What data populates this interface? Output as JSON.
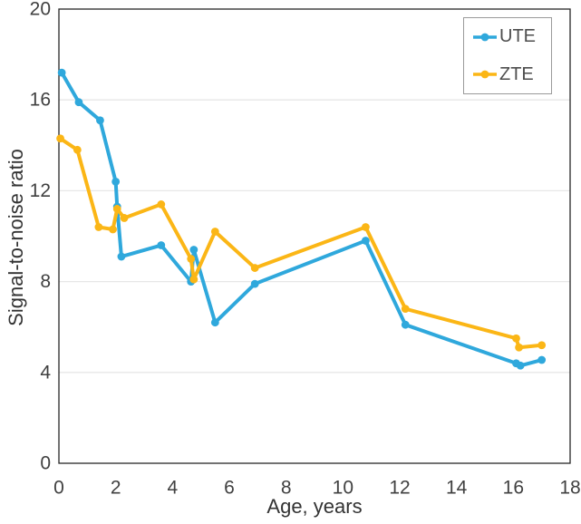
{
  "chart_data": {
    "type": "line",
    "title": "",
    "xlabel": "Age, years",
    "ylabel": "Signal-to-noise ratio",
    "xlim": [
      0,
      18
    ],
    "ylim": [
      0,
      20
    ],
    "x_ticks": [
      0,
      2,
      4,
      6,
      8,
      10,
      12,
      14,
      16,
      18
    ],
    "y_ticks": [
      0,
      4,
      8,
      12,
      16,
      20
    ],
    "grid": "horizontal-only",
    "legend_position": "top-right",
    "series": [
      {
        "name": "UTE",
        "color": "#2FA8DC",
        "points": [
          [
            0.1,
            17.2
          ],
          [
            0.7,
            15.9
          ],
          [
            1.45,
            15.1
          ],
          [
            2.0,
            12.4
          ],
          [
            2.05,
            11.3
          ],
          [
            2.2,
            9.1
          ],
          [
            3.6,
            9.6
          ],
          [
            4.65,
            8.0
          ],
          [
            4.75,
            9.4
          ],
          [
            5.5,
            6.2
          ],
          [
            6.9,
            7.9
          ],
          [
            10.8,
            9.8
          ],
          [
            12.2,
            6.1
          ],
          [
            16.1,
            4.4
          ],
          [
            16.25,
            4.3
          ],
          [
            17.0,
            4.55
          ]
        ]
      },
      {
        "name": "ZTE",
        "color": "#FBB616",
        "points": [
          [
            0.05,
            14.3
          ],
          [
            0.65,
            13.8
          ],
          [
            1.4,
            10.4
          ],
          [
            1.9,
            10.3
          ],
          [
            2.05,
            11.2
          ],
          [
            2.3,
            10.8
          ],
          [
            3.6,
            11.4
          ],
          [
            4.65,
            9.0
          ],
          [
            4.75,
            8.1
          ],
          [
            5.5,
            10.2
          ],
          [
            6.9,
            8.6
          ],
          [
            10.8,
            10.4
          ],
          [
            12.2,
            6.8
          ],
          [
            16.1,
            5.5
          ],
          [
            16.2,
            5.1
          ],
          [
            17.0,
            5.2
          ]
        ]
      }
    ],
    "style": {
      "grid_color": "#E7E7E7",
      "frame_color": "#262626",
      "tick_label_color": "#404040",
      "axis_title_color": "#333333",
      "legend_border_color": "#9a9a9a",
      "legend_text_color": "#4d4d4d",
      "background": "#ffffff"
    }
  }
}
